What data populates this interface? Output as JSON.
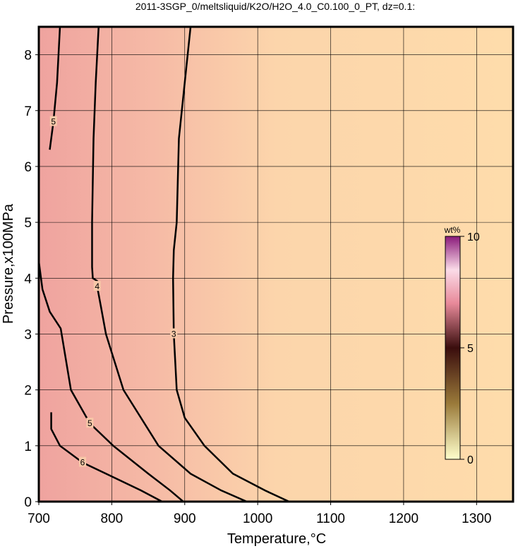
{
  "chart_data": {
    "type": "contour",
    "title": "2011-3SGP_0/meltsliquid/K2O/H2O_4.0_C0.100_0_PT, dz=0.1:",
    "x_label": "Temperature,°C",
    "y_label": "Pressure,x100MPa",
    "xlim": [
      700,
      1350
    ],
    "xticks": [
      700,
      800,
      900,
      1000,
      1100,
      1200,
      1300
    ],
    "ylim": [
      0,
      8.5
    ],
    "yticks": [
      0,
      1,
      2,
      3,
      4,
      5,
      6,
      7,
      8
    ],
    "grid": true,
    "colorbar": {
      "label": "wt%",
      "lim": [
        0,
        10
      ],
      "ticks": [
        0,
        5,
        10
      ]
    },
    "contours": [
      {
        "level": 3,
        "x": [
          908,
          900,
          892,
          889,
          885,
          884,
          885,
          889,
          900,
          927,
          966,
          1010,
          1043
        ],
        "y": [
          8.5,
          7.5,
          6.5,
          5,
          4.5,
          4,
          3,
          2,
          1.5,
          1,
          0.5,
          0.2,
          0
        ]
      },
      {
        "level": 4,
        "x": [
          782,
          778,
          775,
          773,
          773,
          774,
          780,
          780,
          785,
          792,
          816,
          864,
          908,
          950,
          985
        ],
        "y": [
          8.5,
          7.5,
          6.5,
          5,
          4.2,
          4,
          3.95,
          3.85,
          3.5,
          3,
          2,
          1,
          0.5,
          0.2,
          0
        ]
      },
      {
        "level": 5,
        "x": [
          729,
          725,
          720,
          715
        ],
        "y": [
          8.5,
          7.5,
          6.8,
          6.3
        ]
      },
      {
        "level": 5,
        "x": [
          700,
          705,
          715,
          730,
          744,
          770,
          802,
          850,
          880,
          898
        ],
        "y": [
          4.3,
          3.8,
          3.4,
          3.1,
          2,
          1.4,
          1,
          0.5,
          0.2,
          0
        ]
      },
      {
        "level": 6,
        "x": [
          717,
          717,
          729,
          760,
          792,
          840,
          869
        ],
        "y": [
          1.6,
          1.3,
          1,
          0.7,
          0.5,
          0.2,
          0
        ]
      }
    ]
  }
}
